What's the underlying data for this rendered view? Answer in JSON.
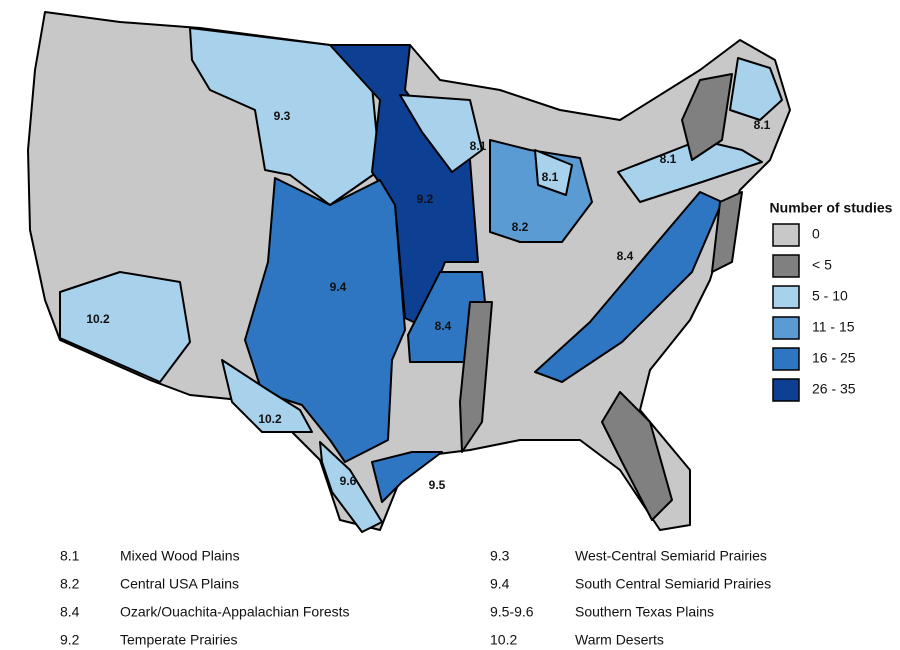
{
  "legend": {
    "title": "Number of studies",
    "items": [
      {
        "label": "0",
        "color": "#c8c8c8"
      },
      {
        "label": "< 5",
        "color": "#808080"
      },
      {
        "label": "5 - 10",
        "color": "#a8d1ec"
      },
      {
        "label": "11 - 15",
        "color": "#5a9bd4"
      },
      {
        "label": "16 - 25",
        "color": "#2f76c2"
      },
      {
        "label": "26 - 35",
        "color": "#0d3f92"
      }
    ]
  },
  "region_labels": [
    "9.3",
    "8.1",
    "8.1",
    "8.1",
    "8.1",
    "9.2",
    "8.2",
    "8.4",
    "9.4",
    "10.2",
    "8.4",
    "10.2",
    "9.6",
    "9.5"
  ],
  "key": [
    [
      "8.1",
      "Mixed Wood Plains"
    ],
    [
      "8.2",
      "Central USA Plains"
    ],
    [
      "8.4",
      "Ozark/Ouachita-Appalachian Forests"
    ],
    [
      "9.2",
      "Temperate Prairies"
    ],
    [
      "9.3",
      "West-Central Semiarid Prairies"
    ],
    [
      "9.4",
      "South Central Semiarid Prairies"
    ],
    [
      "9.5-9.6",
      "Southern Texas Plains"
    ],
    [
      "10.2",
      "Warm Deserts"
    ]
  ]
}
